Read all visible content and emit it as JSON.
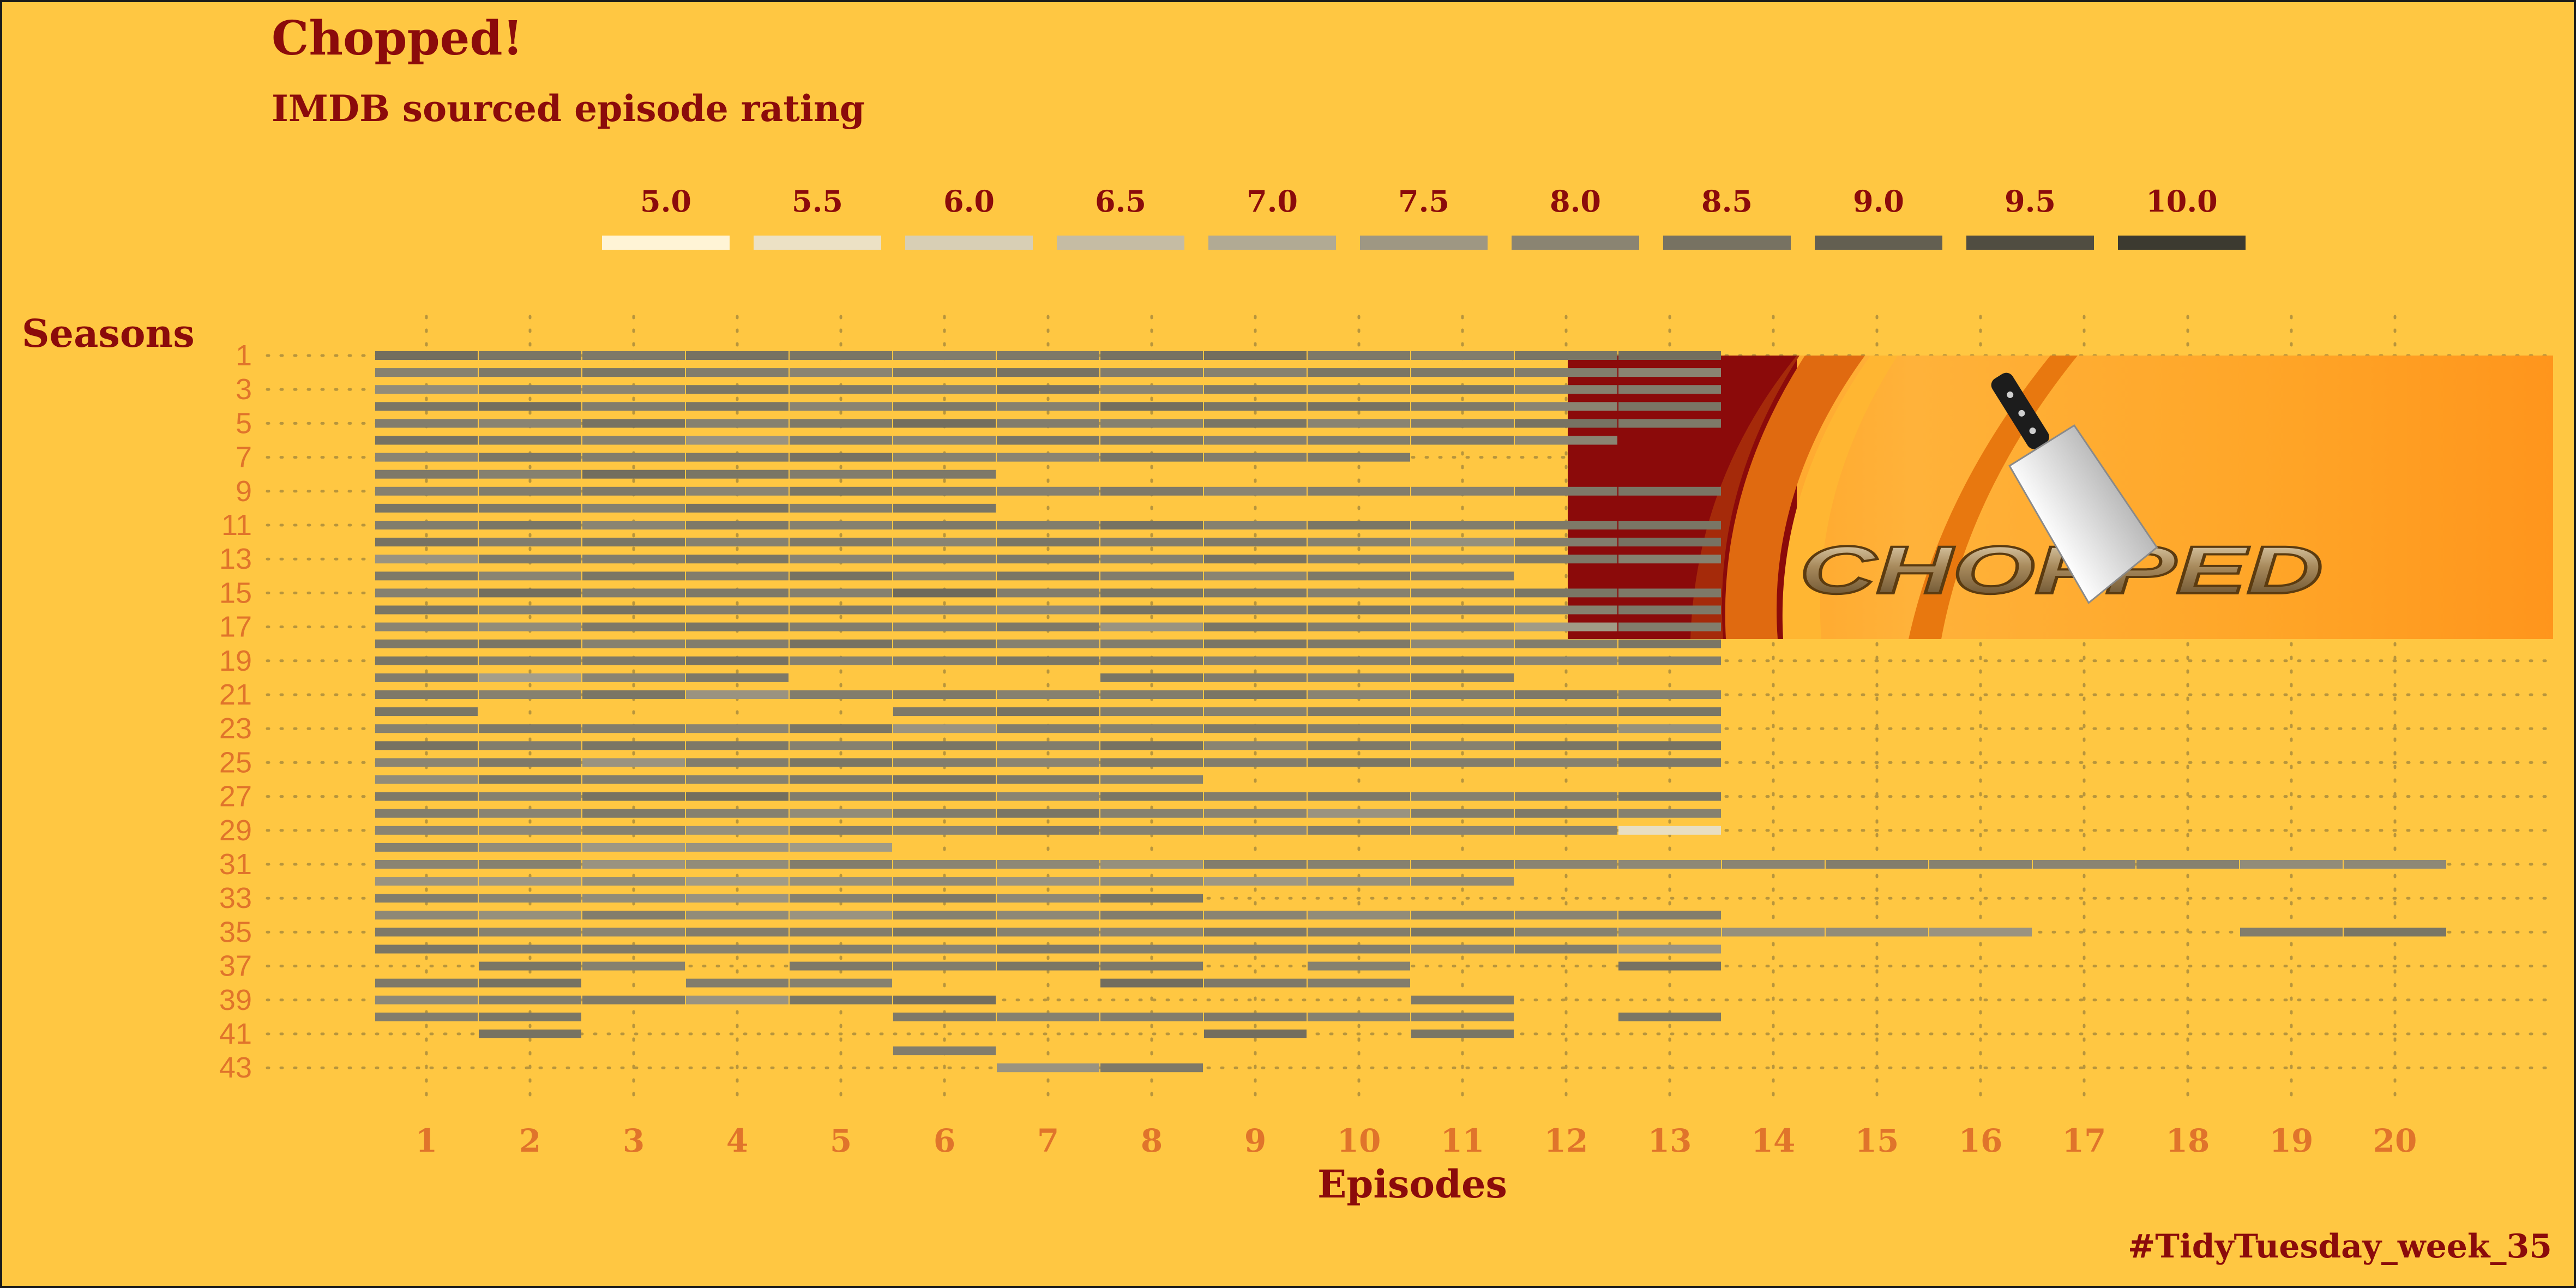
{
  "title": "Chopped!",
  "subtitle": "IMDB sourced episode rating",
  "caption": "#TidyTuesday_week_35",
  "colors": {
    "background": "#ffc742",
    "title": "#8b0b0b",
    "tick": "#e0742b",
    "rating_low": "#fff4d6",
    "rating_high": "#3c3a30"
  },
  "legend": {
    "placement": "top",
    "labels": [
      "5.0",
      "5.5",
      "6.0",
      "6.5",
      "7.0",
      "7.5",
      "8.0",
      "8.5",
      "9.0",
      "9.5",
      "10.0"
    ],
    "values": [
      5.0,
      5.5,
      6.0,
      6.5,
      7.0,
      7.5,
      8.0,
      8.5,
      9.0,
      9.5,
      10.0
    ]
  },
  "logo": {
    "text": "CHOPPED",
    "icon": "cleaver-icon"
  },
  "chart_data": {
    "type": "heatmap",
    "xlabel": "Episodes",
    "ylabel": "Seasons",
    "x_ticks": [
      "1",
      "2",
      "3",
      "4",
      "5",
      "6",
      "7",
      "8",
      "9",
      "10",
      "11",
      "12",
      "13",
      "14",
      "15",
      "16",
      "17",
      "18",
      "19",
      "20"
    ],
    "y_ticks": [
      "1",
      "3",
      "5",
      "7",
      "9",
      "11",
      "13",
      "15",
      "17",
      "19",
      "21",
      "23",
      "25",
      "27",
      "29",
      "31",
      "33",
      "35",
      "37",
      "39",
      "41",
      "43"
    ],
    "xlim": [
      1,
      20
    ],
    "ylim": [
      1,
      43
    ],
    "value_range": [
      5.0,
      10.0
    ],
    "grid": "dotted",
    "seasons": [
      {
        "season": 1,
        "ratings": [
          8.6,
          8.4,
          8.3,
          8.5,
          8.4,
          8.2,
          8.3,
          8.5,
          8.6,
          8.3,
          8.2,
          8.4,
          8.6
        ]
      },
      {
        "season": 2,
        "ratings": [
          8.1,
          8.3,
          8.4,
          8.2,
          8.0,
          8.3,
          8.5,
          8.2,
          8.1,
          8.4,
          8.3,
          8.2,
          8.0
        ]
      },
      {
        "season": 3,
        "ratings": [
          7.8,
          8.2,
          8.0,
          8.4,
          8.3,
          8.1,
          8.5,
          8.0,
          8.3,
          8.2,
          8.4,
          8.1,
          8.2
        ]
      },
      {
        "season": 4,
        "ratings": [
          8.4,
          8.6,
          8.2,
          8.4,
          8.0,
          8.3,
          8.1,
          8.6,
          8.4,
          8.5,
          8.3,
          8.0,
          8.4
        ]
      },
      {
        "season": 5,
        "ratings": [
          8.2,
          8.0,
          8.5,
          8.1,
          8.3,
          8.6,
          8.2,
          8.1,
          8.4,
          8.0,
          8.2,
          8.5,
          8.3
        ]
      },
      {
        "season": 6,
        "ratings": [
          8.5,
          8.3,
          8.1,
          7.6,
          8.2,
          8.0,
          8.4,
          8.3,
          8.1,
          8.2,
          8.3,
          8.0
        ]
      },
      {
        "season": 7,
        "ratings": [
          8.0,
          8.4,
          8.2,
          8.3,
          8.5,
          8.1,
          8.0,
          8.4,
          8.2,
          8.3
        ]
      },
      {
        "season": 8,
        "ratings": [
          8.3,
          8.1,
          8.6,
          8.4,
          8.2,
          8.3
        ]
      },
      {
        "season": 9,
        "ratings": [
          8.1,
          8.2,
          8.3,
          8.0,
          8.4,
          8.2,
          8.1,
          8.3,
          8.0,
          8.2,
          8.1,
          8.3,
          8.4
        ]
      },
      {
        "season": 10,
        "ratings": [
          8.4,
          8.3,
          8.1,
          8.5,
          8.2,
          8.4
        ]
      },
      {
        "season": 11,
        "ratings": [
          8.2,
          8.4,
          8.0,
          8.3,
          8.1,
          8.3,
          8.2,
          8.5,
          8.1,
          8.4,
          8.2,
          8.3,
          8.4
        ]
      },
      {
        "season": 12,
        "ratings": [
          8.5,
          8.2,
          8.4,
          8.1,
          8.3,
          8.0,
          8.4,
          8.2,
          8.3,
          8.1,
          7.7,
          8.2,
          8.5
        ]
      },
      {
        "season": 13,
        "ratings": [
          7.6,
          8.3,
          8.2,
          8.4,
          8.0,
          8.2,
          8.3,
          8.1,
          8.5,
          8.2,
          8.0,
          8.3,
          8.1
        ]
      },
      {
        "season": 14,
        "ratings": [
          8.3,
          8.0,
          8.4,
          8.2,
          8.5,
          8.1,
          8.4,
          8.2,
          8.0,
          8.3,
          8.2
        ]
      },
      {
        "season": 15,
        "ratings": [
          8.1,
          8.6,
          8.2,
          8.3,
          8.1,
          8.7,
          8.2,
          8.4,
          8.3,
          8.1,
          8.2,
          8.4,
          8.3
        ]
      },
      {
        "season": 16,
        "ratings": [
          8.4,
          8.1,
          8.5,
          8.2,
          8.3,
          8.0,
          7.9,
          8.5,
          8.2,
          8.4,
          8.2,
          8.1,
          8.3
        ]
      },
      {
        "season": 17,
        "ratings": [
          8.0,
          7.8,
          8.3,
          8.4,
          8.2,
          8.1,
          8.3,
          7.6,
          8.4,
          8.2,
          8.0,
          7.4,
          8.2
        ]
      },
      {
        "season": 18,
        "ratings": [
          8.3,
          8.4,
          8.1,
          8.2,
          8.5,
          8.3,
          8.1,
          8.2,
          8.4,
          8.3,
          7.9,
          8.2,
          8.4
        ]
      },
      {
        "season": 19,
        "ratings": [
          8.4,
          8.2,
          8.3,
          8.5,
          8.1,
          8.2,
          8.4,
          8.3,
          8.1,
          8.2,
          8.3,
          8.0,
          8.2
        ]
      },
      {
        "season": 20,
        "ratings": [
          8.2,
          7.3,
          8.0,
          8.3,
          null,
          null,
          null,
          8.4,
          8.2,
          8.1,
          8.3
        ]
      },
      {
        "season": 21,
        "ratings": [
          8.3,
          8.1,
          8.4,
          7.6,
          8.2,
          8.3,
          8.1,
          8.2,
          8.4,
          8.0,
          8.2,
          8.3,
          8.1
        ]
      },
      {
        "season": 22,
        "ratings": [
          8.4,
          null,
          null,
          null,
          null,
          8.3,
          8.5,
          8.2,
          8.1,
          8.3,
          8.0,
          8.2,
          8.4
        ]
      },
      {
        "season": 23,
        "ratings": [
          8.1,
          8.3,
          8.2,
          8.0,
          8.4,
          7.6,
          8.2,
          8.1,
          8.3,
          8.2,
          8.4,
          8.1,
          7.7
        ]
      },
      {
        "season": 24,
        "ratings": [
          8.5,
          8.2,
          8.4,
          8.3,
          8.1,
          8.4,
          8.2,
          8.5,
          8.0,
          8.3,
          8.1,
          8.4,
          8.5
        ]
      },
      {
        "season": 25,
        "ratings": [
          8.0,
          8.3,
          7.6,
          8.2,
          8.4,
          8.2,
          8.0,
          8.3,
          8.2,
          8.4,
          8.2,
          8.1,
          8.3
        ]
      },
      {
        "season": 26,
        "ratings": [
          7.8,
          8.4,
          8.2,
          8.1,
          8.3,
          8.5,
          8.3,
          8.1
        ]
      },
      {
        "season": 27,
        "ratings": [
          8.3,
          8.1,
          8.5,
          8.6,
          8.2,
          8.3,
          8.0,
          8.4,
          8.2,
          8.3,
          8.1,
          8.2,
          8.4
        ]
      },
      {
        "season": 28,
        "ratings": [
          8.2,
          8.0,
          8.3,
          8.1,
          7.8,
          8.2,
          8.4,
          8.1,
          8.0,
          7.6,
          8.2,
          8.3,
          8.1
        ]
      },
      {
        "season": 29,
        "ratings": [
          8.0,
          7.9,
          8.1,
          7.7,
          8.2,
          8.0,
          8.3,
          8.1,
          7.9,
          8.2,
          8.0,
          8.1,
          5.6
        ]
      },
      {
        "season": 30,
        "ratings": [
          8.1,
          7.8,
          7.5,
          7.6,
          7.4
        ]
      },
      {
        "season": 31,
        "ratings": [
          8.0,
          8.1,
          7.6,
          7.8,
          8.2,
          8.0,
          7.9,
          7.7,
          8.2,
          8.1,
          8.2,
          8.0,
          7.9,
          8.0,
          8.2,
          8.1,
          8.0,
          8.1,
          7.8,
          7.9
        ]
      },
      {
        "season": 32,
        "ratings": [
          7.6,
          7.5,
          7.8,
          7.4,
          7.7,
          7.9,
          7.6,
          7.8,
          7.5,
          7.7,
          7.9
        ]
      },
      {
        "season": 33,
        "ratings": [
          8.2,
          8.0,
          7.8,
          7.6,
          8.1,
          8.3,
          7.9,
          8.4
        ]
      },
      {
        "season": 34,
        "ratings": [
          7.9,
          7.7,
          8.2,
          7.8,
          7.6,
          8.1,
          7.9,
          8.2,
          8.0,
          7.8,
          8.1,
          8.0,
          8.2
        ]
      },
      {
        "season": 35,
        "ratings": [
          8.3,
          8.1,
          8.0,
          8.2,
          8.2,
          8.4,
          8.1,
          8.0,
          8.3,
          8.2,
          8.4,
          8.1,
          7.8,
          7.7,
          7.8,
          7.6,
          null,
          null,
          8.2,
          8.4
        ]
      },
      {
        "season": 36,
        "ratings": [
          8.4,
          8.2,
          8.3,
          8.1,
          8.2,
          8.0,
          8.3,
          8.2,
          8.1,
          8.2,
          8.0,
          8.2,
          7.6
        ]
      },
      {
        "season": 37,
        "ratings": [
          null,
          8.4,
          8.1,
          null,
          8.3,
          8.2,
          8.4,
          8.3,
          null,
          8.1,
          null,
          null,
          8.5
        ]
      },
      {
        "season": 38,
        "ratings": [
          8.3,
          8.5,
          null,
          8.2,
          8.1,
          null,
          null,
          8.6,
          8.3,
          8.2
        ]
      },
      {
        "season": 39,
        "ratings": [
          7.9,
          8.2,
          8.3,
          7.6,
          8.4,
          8.6,
          null,
          null,
          null,
          null,
          8.3
        ]
      },
      {
        "season": 40,
        "ratings": [
          8.2,
          8.4,
          null,
          null,
          null,
          8.3,
          8.1,
          8.2,
          8.3,
          8.1,
          8.2,
          null,
          8.4
        ]
      },
      {
        "season": 41,
        "ratings": [
          null,
          8.5,
          null,
          null,
          null,
          null,
          null,
          null,
          8.6,
          null,
          8.4
        ]
      },
      {
        "season": 42,
        "ratings": [
          null,
          null,
          null,
          null,
          null,
          8.2
        ]
      },
      {
        "season": 43,
        "ratings": [
          null,
          null,
          null,
          null,
          null,
          null,
          7.6,
          8.3
        ]
      }
    ]
  }
}
